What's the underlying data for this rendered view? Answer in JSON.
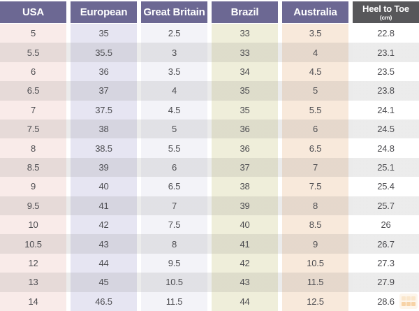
{
  "chart_data": {
    "type": "table",
    "columns": [
      {
        "label": "USA"
      },
      {
        "label": "European"
      },
      {
        "label": "Great Britain"
      },
      {
        "label": "Brazil"
      },
      {
        "label": "Australia"
      },
      {
        "label": "Heel to Toe",
        "sublabel": "(cm)"
      }
    ],
    "rows": [
      [
        "5",
        "35",
        "2.5",
        "33",
        "3.5",
        "22.8"
      ],
      [
        "5.5",
        "35.5",
        "3",
        "33",
        "4",
        "23.1"
      ],
      [
        "6",
        "36",
        "3.5",
        "34",
        "4.5",
        "23.5"
      ],
      [
        "6.5",
        "37",
        "4",
        "35",
        "5",
        "23.8"
      ],
      [
        "7",
        "37.5",
        "4.5",
        "35",
        "5.5",
        "24.1"
      ],
      [
        "7.5",
        "38",
        "5",
        "36",
        "6",
        "24.5"
      ],
      [
        "8",
        "38.5",
        "5.5",
        "36",
        "6.5",
        "24.8"
      ],
      [
        "8.5",
        "39",
        "6",
        "37",
        "7",
        "25.1"
      ],
      [
        "9",
        "40",
        "6.5",
        "38",
        "7.5",
        "25.4"
      ],
      [
        "9.5",
        "41",
        "7",
        "39",
        "8",
        "25.7"
      ],
      [
        "10",
        "42",
        "7.5",
        "40",
        "8.5",
        "26"
      ],
      [
        "10.5",
        "43",
        "8",
        "41",
        "9",
        "26.7"
      ],
      [
        "12",
        "44",
        "9.5",
        "42",
        "10.5",
        "27.3"
      ],
      [
        "13",
        "45",
        "10.5",
        "43",
        "11.5",
        "27.9"
      ],
      [
        "14",
        "46.5",
        "11.5",
        "44",
        "12.5",
        "28.6"
      ]
    ]
  },
  "colors": {
    "header_purple": "#6c6893",
    "header_dark": "#57575a",
    "col_usa": "#f9ebe9",
    "col_european": "#e6e5f2",
    "col_great_britain": "#f3f3f8",
    "col_brazil": "#efeeda",
    "col_australia": "#f8e9db",
    "col_heel": "#ffffff",
    "row_text": "#4c4c50",
    "watermark_orange": "#ee9f3e"
  },
  "icons": {
    "watermark": "logo-watermark-icon"
  }
}
